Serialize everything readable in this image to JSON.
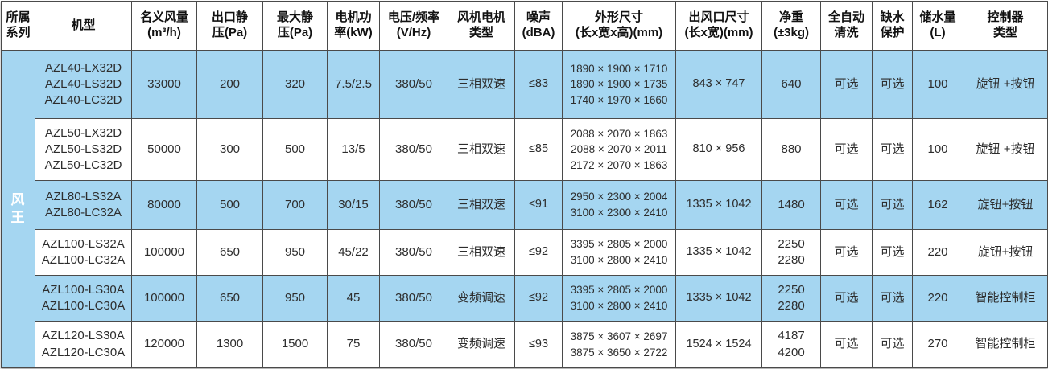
{
  "table": {
    "series_label": "风\n王",
    "headers": [
      "所属\n系列",
      "机型",
      "名义风量\n(m³/h)",
      "出口静\n压(Pa)",
      "最大静\n压(Pa)",
      "电机功\n率(kW)",
      "电压/频率\n(V/Hz)",
      "风机电机\n类型",
      "噪声\n(dBA)",
      "外形尺寸\n(长x宽x高)(mm)",
      "出风口尺寸\n(长x宽)(mm)",
      "净重\n(±3kg)",
      "全自动\n清洗",
      "缺水\n保护",
      "储水量\n(L)",
      "控制器\n类型"
    ],
    "rows": [
      {
        "models": "AZL40-LX32D\nAZL40-LS32D\nAZL40-LC32D",
        "airflow": "33000",
        "outlet_static_pressure": "200",
        "max_static_pressure": "320",
        "motor_power": "7.5/2.5",
        "voltage_frequency": "380/50",
        "motor_type": "三相双速",
        "noise": "≤83",
        "dimensions": "1890 × 1900 × 1710\n1890 × 1900 × 1735\n1740 × 1970 × 1660",
        "outlet_size": "843 × 747",
        "net_weight": "640",
        "auto_clean": "可选",
        "water_protection": "可选",
        "water_storage": "100",
        "controller": "旋钮 +按钮"
      },
      {
        "models": "AZL50-LX32D\nAZL50-LS32D\nAZL50-LC32D",
        "airflow": "50000",
        "outlet_static_pressure": "300",
        "max_static_pressure": "500",
        "motor_power": "13/5",
        "voltage_frequency": "380/50",
        "motor_type": "三相双速",
        "noise": "≤85",
        "dimensions": "2088 × 2070 × 1863\n2088 × 2070 × 2011\n2172 × 2070 × 1863",
        "outlet_size": "810 × 956",
        "net_weight": "880",
        "auto_clean": "可选",
        "water_protection": "可选",
        "water_storage": "100",
        "controller": "旋钮 +按钮"
      },
      {
        "models": "AZL80-LS32A\nAZL80-LC32A",
        "airflow": "80000",
        "outlet_static_pressure": "500",
        "max_static_pressure": "700",
        "motor_power": "30/15",
        "voltage_frequency": "380/50",
        "motor_type": "三相双速",
        "noise": "≤91",
        "dimensions": "2950 × 2300 × 2004\n3100 × 2300 × 2410",
        "outlet_size": "1335 × 1042",
        "net_weight": "1480",
        "auto_clean": "可选",
        "water_protection": "可选",
        "water_storage": "162",
        "controller": "旋钮+按钮"
      },
      {
        "models": "AZL100-LS32A\nAZL100-LC32A",
        "airflow": "100000",
        "outlet_static_pressure": "650",
        "max_static_pressure": "950",
        "motor_power": "45/22",
        "voltage_frequency": "380/50",
        "motor_type": "三相双速",
        "noise": "≤92",
        "dimensions": "3395 × 2805 × 2000\n3100 × 2800 × 2410",
        "outlet_size": "1335 × 1042",
        "net_weight": "2250\n2280",
        "auto_clean": "可选",
        "water_protection": "可选",
        "water_storage": "220",
        "controller": "旋钮+按钮"
      },
      {
        "models": "AZL100-LS30A\nAZL100-LC30A",
        "airflow": "100000",
        "outlet_static_pressure": "650",
        "max_static_pressure": "950",
        "motor_power": "45",
        "voltage_frequency": "380/50",
        "motor_type": "变频调速",
        "noise": "≤92",
        "dimensions": "3395 × 2805 × 2000\n3100 × 2800 × 2410",
        "outlet_size": "1335 × 1042",
        "net_weight": "2250\n2280",
        "auto_clean": "可选",
        "water_protection": "可选",
        "water_storage": "220",
        "controller": "智能控制柜"
      },
      {
        "models": "AZL120-LS30A\nAZL120-LC30A",
        "airflow": "120000",
        "outlet_static_pressure": "1300",
        "max_static_pressure": "1500",
        "motor_power": "75",
        "voltage_frequency": "380/50",
        "motor_type": "变频调速",
        "noise": "≤93",
        "dimensions": "3875 × 3607 × 2697\n3875 × 3650 × 2722",
        "outlet_size": "1524 × 1524",
        "net_weight": "4187\n4200",
        "auto_clean": "可选",
        "water_protection": "可选",
        "water_storage": "270",
        "controller": "智能控制柜"
      }
    ],
    "colors": {
      "series_bg": "#17489e",
      "row_alt_bg": "#a5d6f1",
      "border": "#4a4a4a"
    }
  }
}
